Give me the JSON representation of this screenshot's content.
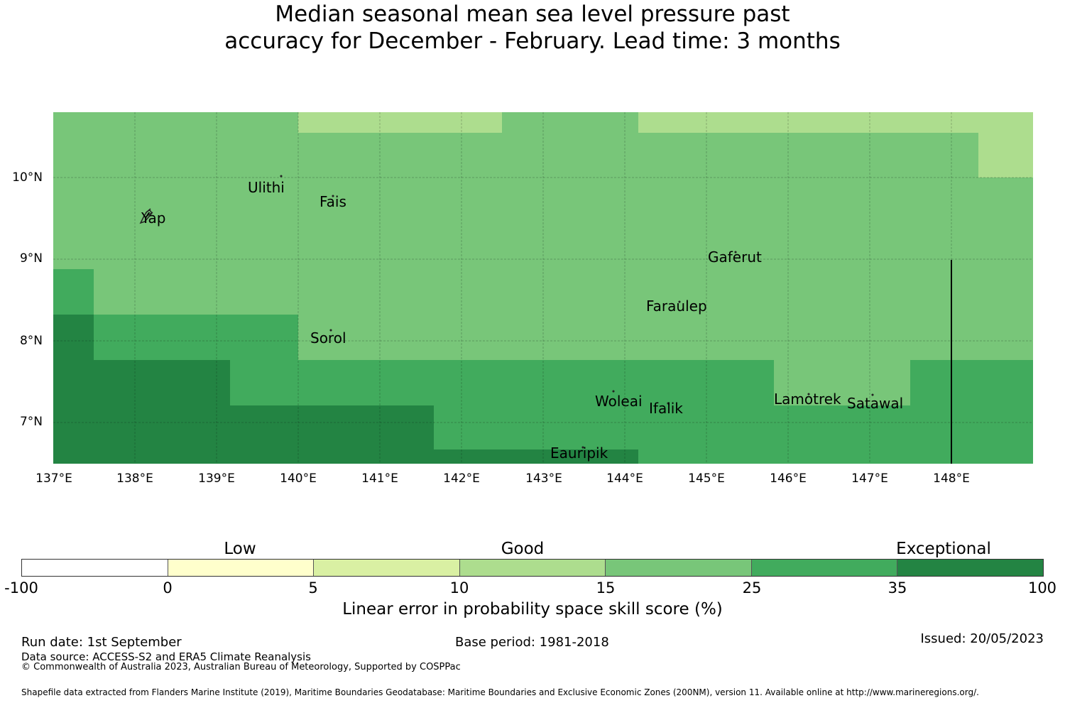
{
  "title_line1": "Median seasonal mean sea level pressure past",
  "title_line2": "accuracy for December - February. Lead time: 3 months",
  "map": {
    "lon_labels": [
      "137°E",
      "138°E",
      "139°E",
      "140°E",
      "141°E",
      "142°E",
      "143°E",
      "144°E",
      "145°E",
      "146°E",
      "147°E",
      "148°E"
    ],
    "lat_labels": [
      "10°N",
      "9°N",
      "8°N",
      "7°N"
    ],
    "places": [
      "Ulithi",
      "Fais",
      "Yap",
      "Gaferut",
      "Faraulep",
      "Sorol",
      "Woleai",
      "Ifalik",
      "Lamotrek",
      "Satawal",
      "Eauripik"
    ]
  },
  "colorbar": {
    "group_labels": [
      "Low",
      "Good",
      "Exceptional"
    ],
    "ticks": [
      "-100",
      "0",
      "5",
      "10",
      "15",
      "25",
      "35",
      "100"
    ],
    "colors": [
      "#ffffff",
      "#ffffcc",
      "#d9f0a3",
      "#addd8e",
      "#78c679",
      "#41ab5d",
      "#238443"
    ],
    "label": "Linear error in probability space skill score (%)"
  },
  "footer": {
    "run_date": "Run date: 1st September",
    "base_period": "Base period: 1981-2018",
    "issued": "Issued: 20/05/2023",
    "data_source": "Data source: ACCESS-S2 and ERA5 Climate Reanalysis",
    "copyright": "© Commonwealth of Australia 2023, Australian Bureau of Meteorology, Supported by COSPPac",
    "shapefile": "Shapefile data extracted from Flanders Marine Institute (2019), Maritime Boundaries Geodatabase: Maritime Boundaries and Exclusive Economic Zones (200NM), version 11. Available online at http://www.marineregions.org/."
  }
}
